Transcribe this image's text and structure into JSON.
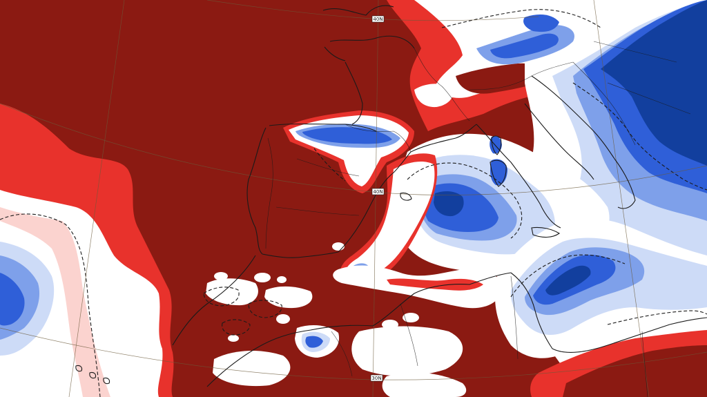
{
  "palette": {
    "dark_red": "#8b1a12",
    "red": "#e8322c",
    "light_red": "#f49a95",
    "pale_red": "#fbd3cf",
    "white": "#ffffff",
    "pale_blue": "#cddbf7",
    "light_blue": "#7ea0ea",
    "blue": "#2f5fd8",
    "dark_blue": "#123f9e",
    "coastline": "#1a1a1a",
    "graticule": "#6b5a3a"
  },
  "contour_style": "dashed",
  "labels": {
    "lat_top": "40N",
    "lat_mid": "40N",
    "lat_bottom": "30N"
  }
}
